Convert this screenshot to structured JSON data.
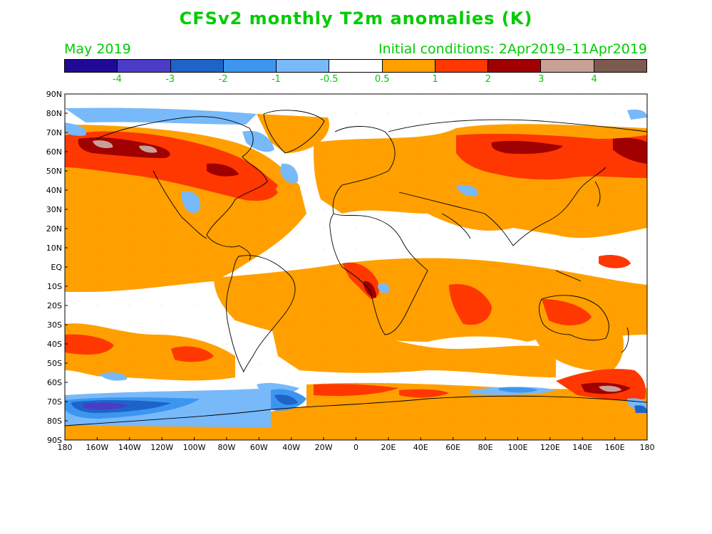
{
  "title": "CFSv2 monthly T2m anomalies (K)",
  "subtitle_left": "May 2019",
  "subtitle_right": "Initial conditions: 2Apr2019–11Apr2019",
  "colorbar": {
    "colors": [
      "#1f0a96",
      "#4b3cc8",
      "#1e64c8",
      "#3c96f0",
      "#78b9fa",
      "#ffffff",
      "#ffa000",
      "#ff3700",
      "#a00000",
      "#c8a096",
      "#7d5a50"
    ],
    "labels": [
      "-4",
      "-3",
      "-2",
      "-1",
      "-0.5",
      "0.5",
      "1",
      "2",
      "3",
      "4"
    ]
  },
  "lat_labels": [
    "90N",
    "80N",
    "70N",
    "60N",
    "50N",
    "40N",
    "30N",
    "20N",
    "10N",
    "EQ",
    "10S",
    "20S",
    "30S",
    "40S",
    "50S",
    "60S",
    "70S",
    "80S",
    "90S"
  ],
  "lon_labels": [
    "180",
    "160W",
    "140W",
    "120W",
    "100W",
    "80W",
    "60W",
    "40W",
    "20W",
    "0",
    "20E",
    "40E",
    "60E",
    "80E",
    "100E",
    "120E",
    "140E",
    "160E",
    "180"
  ]
}
